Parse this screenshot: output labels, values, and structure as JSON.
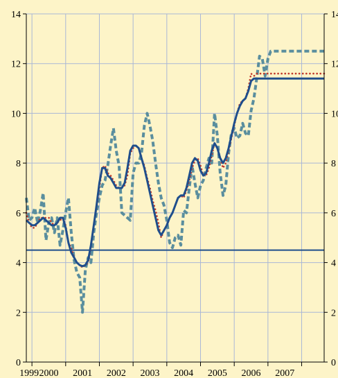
{
  "chart_data": {
    "type": "line",
    "title": "",
    "xlabel": "",
    "ylabel": "",
    "x": [
      1998.833,
      1998.917,
      1999.0,
      1999.083,
      1999.167,
      1999.25,
      1999.333,
      1999.417,
      1999.5,
      1999.583,
      1999.667,
      1999.75,
      1999.833,
      1999.917,
      2000.0,
      2000.083,
      2000.167,
      2000.25,
      2000.333,
      2000.417,
      2000.5,
      2000.583,
      2000.667,
      2000.75,
      2000.833,
      2000.917,
      2001.0,
      2001.083,
      2001.167,
      2001.25,
      2001.333,
      2001.417,
      2001.5,
      2001.583,
      2001.667,
      2001.75,
      2001.833,
      2001.917,
      2002.0,
      2002.083,
      2002.167,
      2002.25,
      2002.333,
      2002.417,
      2002.5,
      2002.583,
      2002.667,
      2002.75,
      2002.833,
      2002.917,
      2003.0,
      2003.083,
      2003.167,
      2003.25,
      2003.333,
      2003.417,
      2003.5,
      2003.583,
      2003.667,
      2003.75,
      2003.833,
      2003.917,
      2004.0,
      2004.083,
      2004.167,
      2004.25,
      2004.333,
      2004.417,
      2004.5,
      2004.583,
      2004.667,
      2004.75,
      2004.833,
      2004.917,
      2005.0,
      2005.083,
      2005.167,
      2005.25,
      2005.333,
      2005.417,
      2005.5,
      2005.583,
      2005.667,
      2005.75,
      2005.833,
      2005.917,
      2006.0,
      2006.083,
      2006.167,
      2006.25,
      2006.333,
      2006.417,
      2006.5,
      2006.583,
      2006.667,
      2006.75,
      2006.833,
      2006.917,
      2007.0,
      2007.083,
      2007.167,
      2007.25,
      2007.333,
      2007.417,
      2007.5,
      2007.583,
      2007.667
    ],
    "series": [
      {
        "color": "#5a8e9e",
        "style": "dashed",
        "values": [
          6.6,
          5.7,
          5.8,
          6.2,
          5.6,
          6.1,
          6.8,
          4.9,
          5.6,
          5.8,
          5.2,
          5.8,
          4.7,
          5.3,
          6.0,
          6.6,
          5.2,
          4.1,
          3.6,
          3.4,
          2.0,
          3.7,
          4.2,
          4.0,
          5.2,
          6.0,
          6.6,
          7.1,
          7.3,
          7.9,
          8.7,
          9.4,
          8.5,
          7.9,
          6.0,
          5.9,
          5.8,
          5.7,
          7.6,
          8.0,
          8.0,
          8.4,
          9.5,
          10.0,
          9.5,
          8.9,
          8.0,
          7.2,
          6.6,
          6.3,
          5.7,
          4.8,
          4.6,
          5.0,
          5.1,
          4.7,
          6.1,
          6.0,
          7.0,
          7.9,
          7.2,
          6.6,
          7.1,
          7.3,
          7.8,
          8.2,
          8.0,
          10.0,
          9.1,
          7.6,
          6.7,
          7.1,
          8.4,
          9.2,
          9.4,
          9.0,
          9.1,
          9.6,
          9.2,
          9.1,
          10.1,
          10.6,
          11.4,
          12.3,
          12.2,
          11.5,
          12.2,
          12.5,
          12.5,
          12.5,
          12.5,
          12.5,
          12.5,
          12.5,
          12.5,
          12.5,
          12.5,
          12.5,
          12.5,
          12.5,
          12.5,
          12.5,
          12.5,
          12.5,
          12.5,
          12.5,
          12.5
        ]
      },
      {
        "color": "#c0392b",
        "style": "dotted",
        "values": [
          6.0,
          5.6,
          5.4,
          5.4,
          5.6,
          5.8,
          5.8,
          5.8,
          5.8,
          5.6,
          5.5,
          5.6,
          5.7,
          5.8,
          5.5,
          4.8,
          4.6,
          4.2,
          4.0,
          3.9,
          3.8,
          3.9,
          4.0,
          4.6,
          5.5,
          6.2,
          7.0,
          7.8,
          7.9,
          7.6,
          7.5,
          7.3,
          7.1,
          7.0,
          7.0,
          7.1,
          7.5,
          8.4,
          8.6,
          8.7,
          8.6,
          8.2,
          7.9,
          7.4,
          7.0,
          6.5,
          6.1,
          5.6,
          5.0,
          5.3,
          5.5,
          5.8,
          6.0,
          6.3,
          6.6,
          6.7,
          6.6,
          6.9,
          7.3,
          7.8,
          8.1,
          8.2,
          7.9,
          7.5,
          7.5,
          7.8,
          8.3,
          8.8,
          8.6,
          8.2,
          7.8,
          8.0,
          8.5,
          9.0,
          9.5,
          10.0,
          10.4,
          10.5,
          10.6,
          11.0,
          11.6,
          11.5,
          11.6,
          11.6,
          11.6,
          11.6,
          11.6,
          11.6,
          11.6,
          11.6,
          11.6,
          11.6,
          11.6,
          11.6,
          11.6,
          11.6,
          11.6,
          11.6,
          11.6,
          11.6,
          11.6,
          11.6,
          11.6,
          11.6,
          11.6,
          11.6,
          11.6
        ]
      },
      {
        "color": "#1f4e8c",
        "style": "solid",
        "values": [
          5.7,
          5.6,
          5.5,
          5.5,
          5.6,
          5.7,
          5.8,
          5.7,
          5.6,
          5.5,
          5.5,
          5.6,
          5.8,
          5.8,
          5.4,
          4.8,
          4.4,
          4.2,
          4.0,
          3.9,
          3.85,
          3.9,
          4.1,
          4.7,
          5.5,
          6.3,
          7.2,
          7.8,
          7.8,
          7.5,
          7.4,
          7.2,
          7.0,
          7.0,
          7.0,
          7.2,
          7.8,
          8.5,
          8.7,
          8.7,
          8.6,
          8.2,
          7.8,
          7.3,
          6.8,
          6.3,
          5.8,
          5.3,
          5.1,
          5.3,
          5.5,
          5.8,
          6.0,
          6.3,
          6.6,
          6.7,
          6.7,
          7.0,
          7.5,
          8.0,
          8.2,
          8.1,
          7.7,
          7.5,
          7.6,
          8.0,
          8.5,
          8.8,
          8.6,
          8.2,
          8.0,
          8.2,
          8.6,
          9.1,
          9.6,
          10.0,
          10.3,
          10.5,
          10.6,
          10.9,
          11.3,
          11.4,
          11.4,
          11.4,
          11.4,
          11.4,
          11.4,
          11.4,
          11.4,
          11.4,
          11.4,
          11.4,
          11.4,
          11.4,
          11.4,
          11.4,
          11.4,
          11.4,
          11.4,
          11.4,
          11.4,
          11.4,
          11.4,
          11.4,
          11.4,
          11.4,
          11.4
        ]
      }
    ],
    "reference_line": {
      "y": 4.5,
      "color": "#1f4e8c"
    },
    "xlim": [
      1998.833,
      2007.667
    ],
    "ylim": [
      0,
      14
    ],
    "yticks": [
      0,
      2,
      4,
      6,
      8,
      10,
      12,
      14
    ],
    "xtick_labels": [
      "1999",
      "2000",
      "2001",
      "2002",
      "2003",
      "2004",
      "2005",
      "2006",
      "2007"
    ],
    "grid": true,
    "legend": "none"
  }
}
